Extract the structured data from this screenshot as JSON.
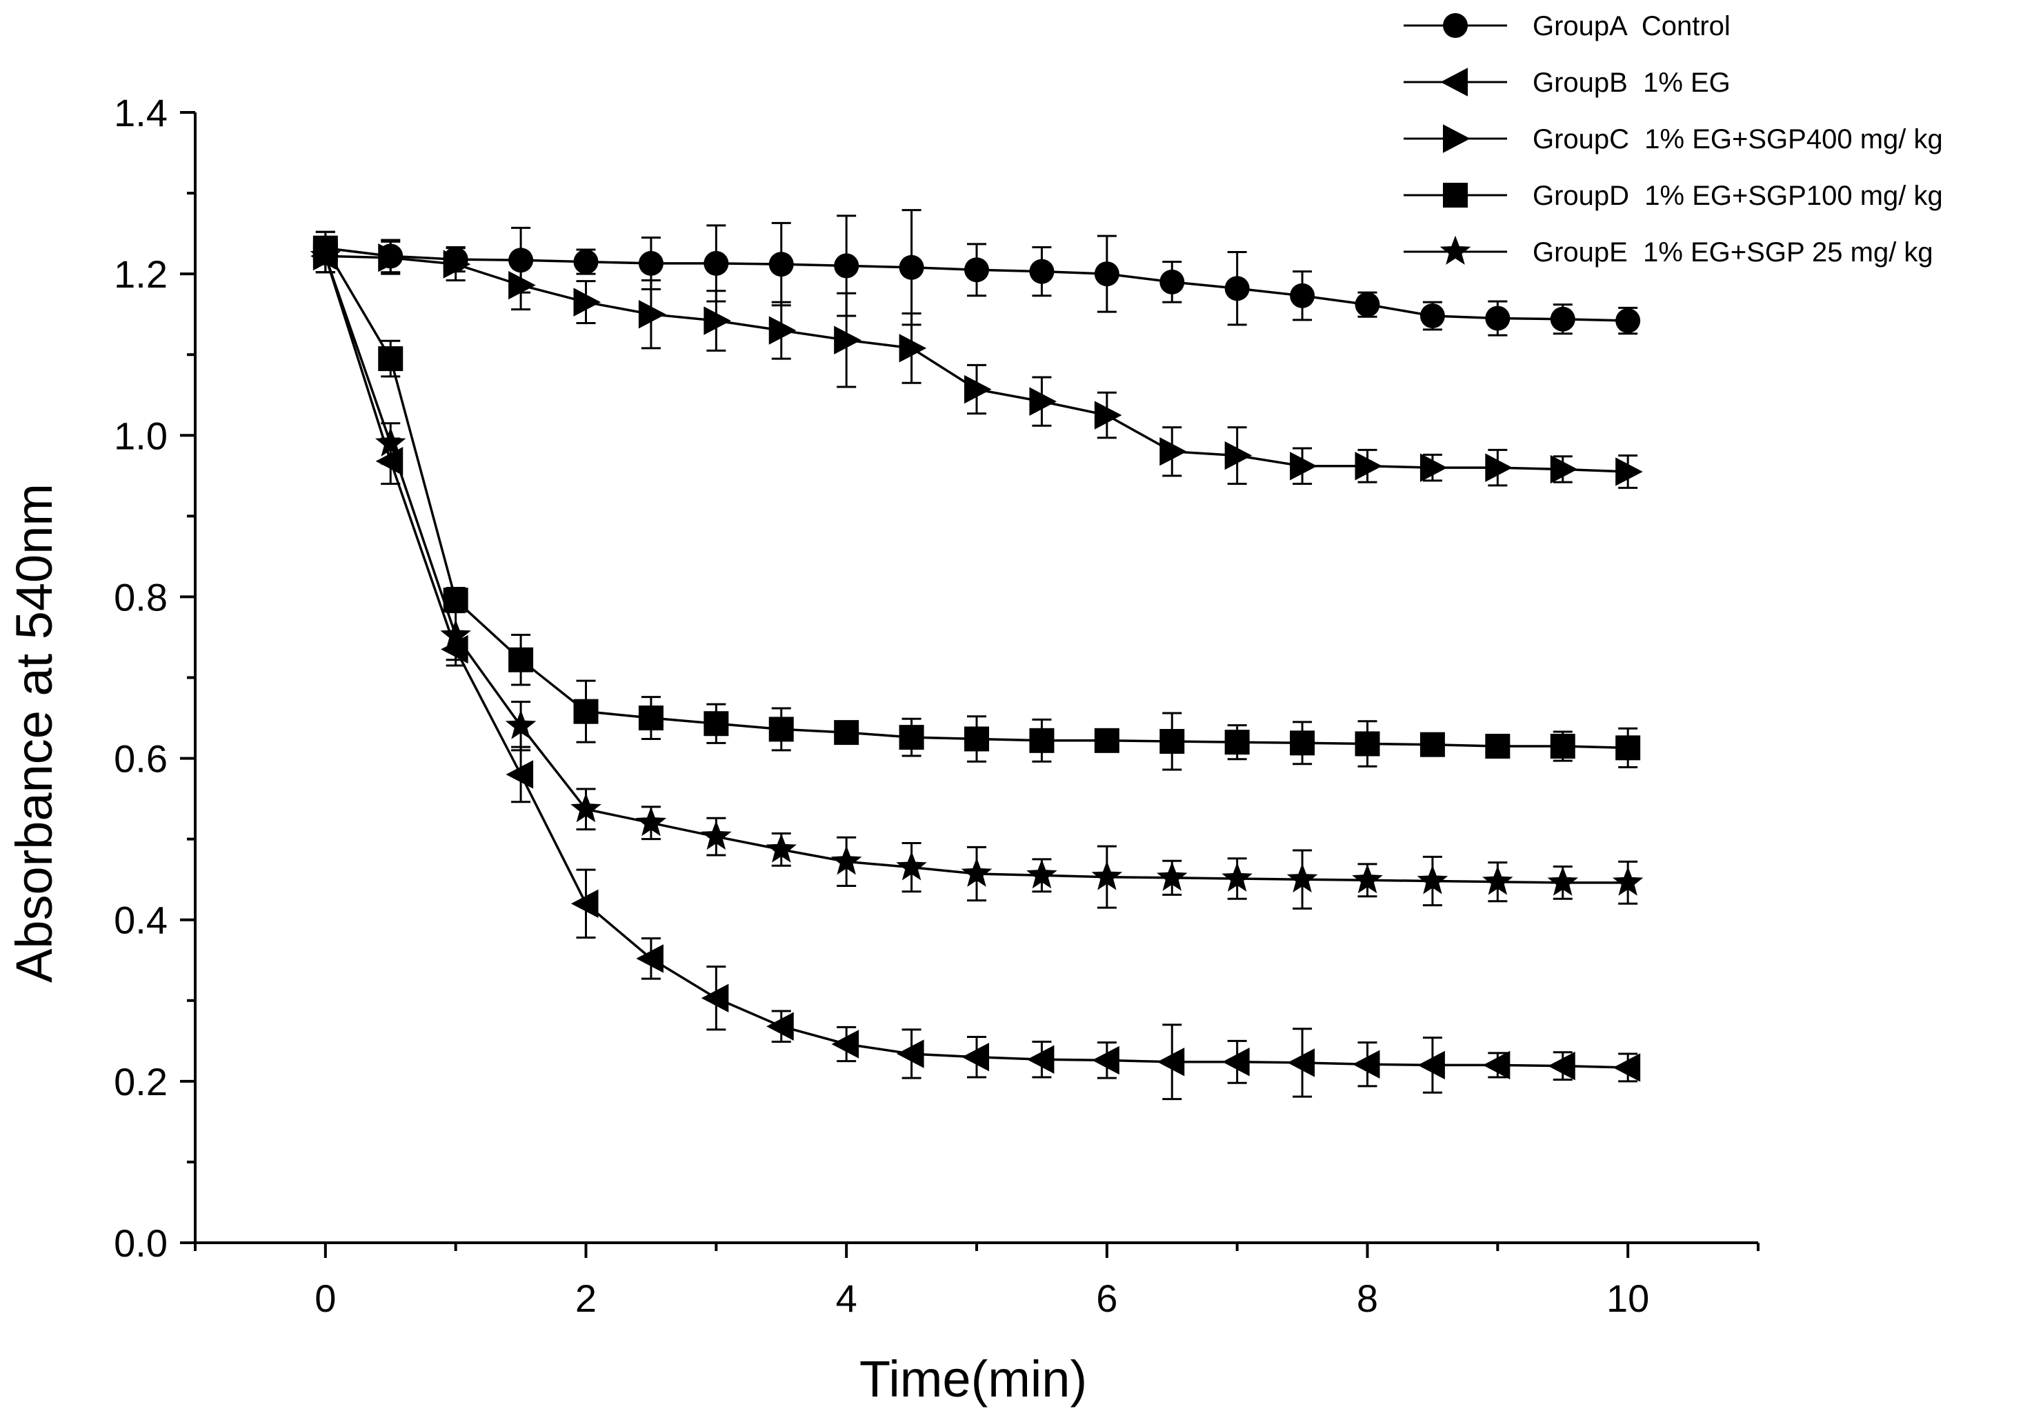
{
  "chart_data": {
    "type": "line",
    "title": "",
    "xlabel": "Time(min)",
    "ylabel": "Absorbance at 540nm",
    "xlim": [
      -1,
      11
    ],
    "ylim": [
      0,
      1.4
    ],
    "grid": false,
    "legend_position": "top-right",
    "xticks": [
      "0",
      "2",
      "4",
      "6",
      "8",
      "10"
    ],
    "yticks": [
      "0.0",
      "0.2",
      "0.4",
      "0.6",
      "0.8",
      "1.0",
      "1.2",
      "1.4"
    ],
    "x": [
      0,
      0.5,
      1,
      1.5,
      2,
      2.5,
      3,
      3.5,
      4,
      4.5,
      5,
      5.5,
      6,
      6.5,
      7,
      7.5,
      8,
      8.5,
      9,
      9.5,
      10
    ],
    "series": [
      {
        "name": "GroupA  Control",
        "marker": "circle",
        "values": [
          1.232,
          1.222,
          1.218,
          1.217,
          1.215,
          1.213,
          1.213,
          1.212,
          1.21,
          1.208,
          1.205,
          1.203,
          1.2,
          1.19,
          1.182,
          1.173,
          1.162,
          1.148,
          1.145,
          1.144,
          1.142
        ],
        "errors": [
          0.02,
          0.02,
          0.015,
          0.04,
          0.015,
          0.032,
          0.047,
          0.051,
          0.062,
          0.071,
          0.032,
          0.03,
          0.047,
          0.025,
          0.045,
          0.03,
          0.015,
          0.017,
          0.021,
          0.018,
          0.016
        ]
      },
      {
        "name": "GroupB  1% EG",
        "marker": "triangle-left",
        "values": [
          1.222,
          0.968,
          0.735,
          0.58,
          0.42,
          0.352,
          0.303,
          0.268,
          0.246,
          0.234,
          0.23,
          0.227,
          0.226,
          0.224,
          0.224,
          0.223,
          0.221,
          0.22,
          0.22,
          0.219,
          0.217
        ],
        "errors": [
          0.02,
          0.028,
          0.02,
          0.034,
          0.042,
          0.025,
          0.039,
          0.019,
          0.021,
          0.03,
          0.025,
          0.022,
          0.022,
          0.046,
          0.026,
          0.042,
          0.027,
          0.034,
          0.015,
          0.017,
          0.017
        ]
      },
      {
        "name": "GroupC  1% EG+SGP400 mg/ kg",
        "marker": "triangle-right",
        "values": [
          1.222,
          1.22,
          1.212,
          1.186,
          1.165,
          1.15,
          1.142,
          1.13,
          1.118,
          1.108,
          1.057,
          1.042,
          1.025,
          0.98,
          0.975,
          0.962,
          0.962,
          0.96,
          0.96,
          0.958,
          0.955
        ],
        "errors": [
          0.02,
          0.02,
          0.02,
          0.03,
          0.026,
          0.042,
          0.037,
          0.035,
          0.058,
          0.043,
          0.03,
          0.03,
          0.028,
          0.03,
          0.035,
          0.022,
          0.02,
          0.016,
          0.022,
          0.016,
          0.02
        ]
      },
      {
        "name": "GroupD  1% EG+SGP100 mg/ kg",
        "marker": "square",
        "values": [
          1.232,
          1.095,
          0.796,
          0.722,
          0.658,
          0.65,
          0.643,
          0.636,
          0.632,
          0.626,
          0.624,
          0.622,
          0.622,
          0.621,
          0.62,
          0.619,
          0.618,
          0.617,
          0.615,
          0.615,
          0.613
        ],
        "errors": [
          0.02,
          0.022,
          0.015,
          0.031,
          0.038,
          0.026,
          0.024,
          0.026,
          0.012,
          0.023,
          0.028,
          0.026,
          0.012,
          0.035,
          0.021,
          0.026,
          0.028,
          0.012,
          0.012,
          0.018,
          0.024
        ]
      },
      {
        "name": "GroupE  1% EG+SGP 25 mg/ kg",
        "marker": "star",
        "values": [
          1.222,
          0.99,
          0.752,
          0.64,
          0.537,
          0.52,
          0.503,
          0.487,
          0.472,
          0.465,
          0.457,
          0.455,
          0.453,
          0.452,
          0.451,
          0.45,
          0.449,
          0.448,
          0.447,
          0.446,
          0.446
        ],
        "errors": [
          0.02,
          0.025,
          0.03,
          0.03,
          0.025,
          0.02,
          0.023,
          0.02,
          0.03,
          0.03,
          0.033,
          0.02,
          0.038,
          0.021,
          0.025,
          0.036,
          0.02,
          0.03,
          0.024,
          0.02,
          0.026
        ]
      }
    ]
  }
}
